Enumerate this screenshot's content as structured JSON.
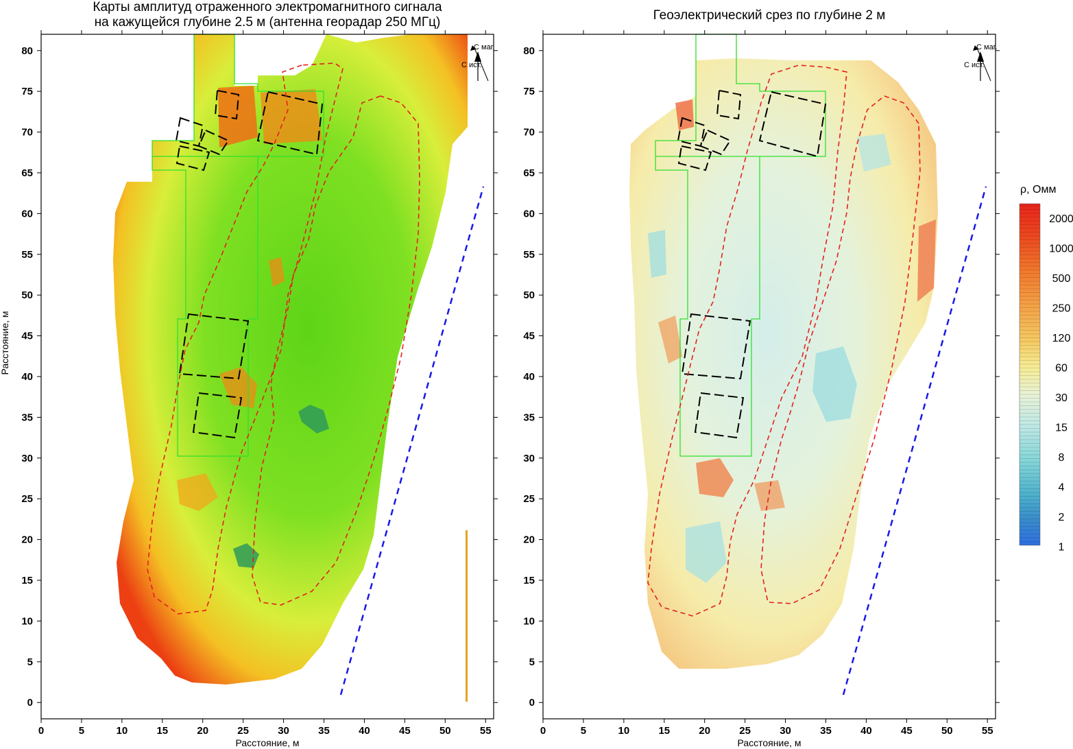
{
  "chart_data": [
    {
      "type": "heatmap",
      "title": "Карты амплитуд отраженного электромагнитного сигнала на кажущейся глубине 2.5 м (антенна георадар 250 МГц)",
      "title_lines": [
        "Карты амплитуд отраженного электромагнитного сигнала",
        "на кажущейся глубине 2.5 м (антенна георадар 250 МГц)"
      ],
      "xlabel": "Расстояние, м",
      "ylabel": "Расстояние, м",
      "xlim": [
        0,
        56
      ],
      "ylim": [
        -2,
        82
      ],
      "xticks": [
        "0",
        "5",
        "10",
        "15",
        "20",
        "25",
        "30",
        "35",
        "40",
        "45",
        "50",
        "55"
      ],
      "yticks": [
        "0",
        "5",
        "10",
        "15",
        "20",
        "25",
        "30",
        "35",
        "40",
        "45",
        "50",
        "55",
        "60",
        "65",
        "70",
        "75",
        "80"
      ],
      "north_arrow": {
        "mag": "С маг.",
        "true": "С ист."
      },
      "colors": {
        "low": "#2e8b57",
        "mid": "#66e01a",
        "high": "#ee2a10"
      }
    },
    {
      "type": "heatmap",
      "title": "Геоэлектрический срез по глубине 2 м",
      "xlabel": "Расстояние, м",
      "ylabel": "",
      "xlim": [
        0,
        56
      ],
      "ylim": [
        -2,
        82
      ],
      "xticks": [
        "0",
        "5",
        "10",
        "15",
        "20",
        "25",
        "30",
        "35",
        "40",
        "45",
        "50",
        "55"
      ],
      "yticks": [
        "0",
        "5",
        "10",
        "15",
        "20",
        "25",
        "30",
        "35",
        "40",
        "45",
        "50",
        "55",
        "60",
        "65",
        "70",
        "75",
        "80"
      ],
      "north_arrow": {
        "mag": "С маг.",
        "true": "С ист."
      },
      "colorbar": {
        "title": "ρ, Омм",
        "labels": [
          "2000",
          "1000",
          "500",
          "250",
          "120",
          "60",
          "30",
          "15",
          "8",
          "4",
          "2",
          "1"
        ],
        "colors": [
          "#e8241b",
          "#ec4a20",
          "#f07a2c",
          "#f4a146",
          "#f5c962",
          "#f6ec95",
          "#e7f2d6",
          "#bfe8e5",
          "#86d6d8",
          "#4eb2cc",
          "#3a8ecb",
          "#2f6ee0"
        ]
      }
    }
  ]
}
